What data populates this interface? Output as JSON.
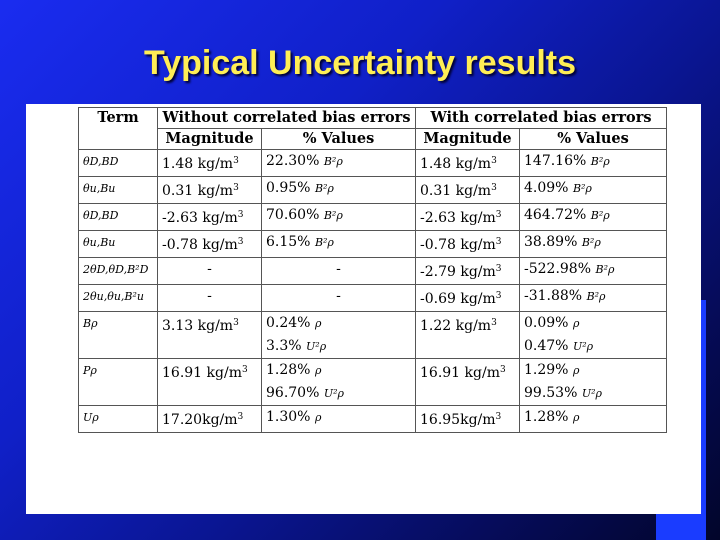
{
  "title": "Typical Uncertainty results",
  "table": {
    "headers": {
      "term": "Term",
      "without": "Without correlated bias errors",
      "with": "With correlated bias errors",
      "magnitude": "Magnitude",
      "values": "% Values"
    },
    "rows": [
      {
        "term": "θD,BD",
        "mag1": "1.48 kg/m",
        "pct1": "22.30%",
        "sym1": "B²ρ",
        "mag2": "1.48 kg/m",
        "pct2": "147.16%",
        "sym2": "B²ρ"
      },
      {
        "term": "θu,Bu",
        "mag1": "0.31 kg/m",
        "pct1": "0.95%",
        "sym1": "B²ρ",
        "mag2": "0.31 kg/m",
        "pct2": "4.09%",
        "sym2": "B²ρ"
      },
      {
        "term": "θD,BD",
        "mag1": "-2.63 kg/m",
        "pct1": "70.60%",
        "sym1": "B²ρ",
        "mag2": "-2.63 kg/m",
        "pct2": "464.72%",
        "sym2": "B²ρ"
      },
      {
        "term": "θu,Bu",
        "mag1": "-0.78 kg/m",
        "pct1": "6.15%",
        "sym1": "B²ρ",
        "mag2": "-0.78 kg/m",
        "pct2": "38.89%",
        "sym2": "B²ρ"
      },
      {
        "term": "2θD,θD,B²D",
        "mag1": "-",
        "pct1": "-",
        "sym1": "",
        "mag2": "-2.79 kg/m",
        "pct2": "-522.98%",
        "sym2": "B²ρ"
      },
      {
        "term": "2θu,θu,B²u",
        "mag1": "-",
        "pct1": "-",
        "sym1": "",
        "mag2": "-0.69 kg/m",
        "pct2": "-31.88%",
        "sym2": "B²ρ"
      },
      {
        "term": "Bρ",
        "mag1": "3.13 kg/m",
        "pct1": "0.24%",
        "sym1": "ρ",
        "pct1b": "3.3%",
        "sym1b": "U²ρ",
        "mag2": "1.22 kg/m",
        "pct2": "0.09%",
        "sym2": "ρ",
        "pct2b": "0.47%",
        "sym2b": "U²ρ"
      },
      {
        "term": "Pρ",
        "mag1": "16.91 kg/m",
        "pct1": "1.28%",
        "sym1": "ρ",
        "pct1b": "96.70%",
        "sym1b": "U²ρ",
        "mag2": "16.91 kg/m",
        "pct2": "1.29%",
        "sym2": "ρ",
        "pct2b": "99.53%",
        "sym2b": "U²ρ"
      },
      {
        "term": "Uρ",
        "mag1": "17.20kg/m",
        "pct1": "1.30%",
        "sym1": "ρ",
        "mag2": "16.95kg/m",
        "pct2": "1.28%",
        "sym2": "ρ"
      }
    ],
    "unit_exp": "3"
  }
}
